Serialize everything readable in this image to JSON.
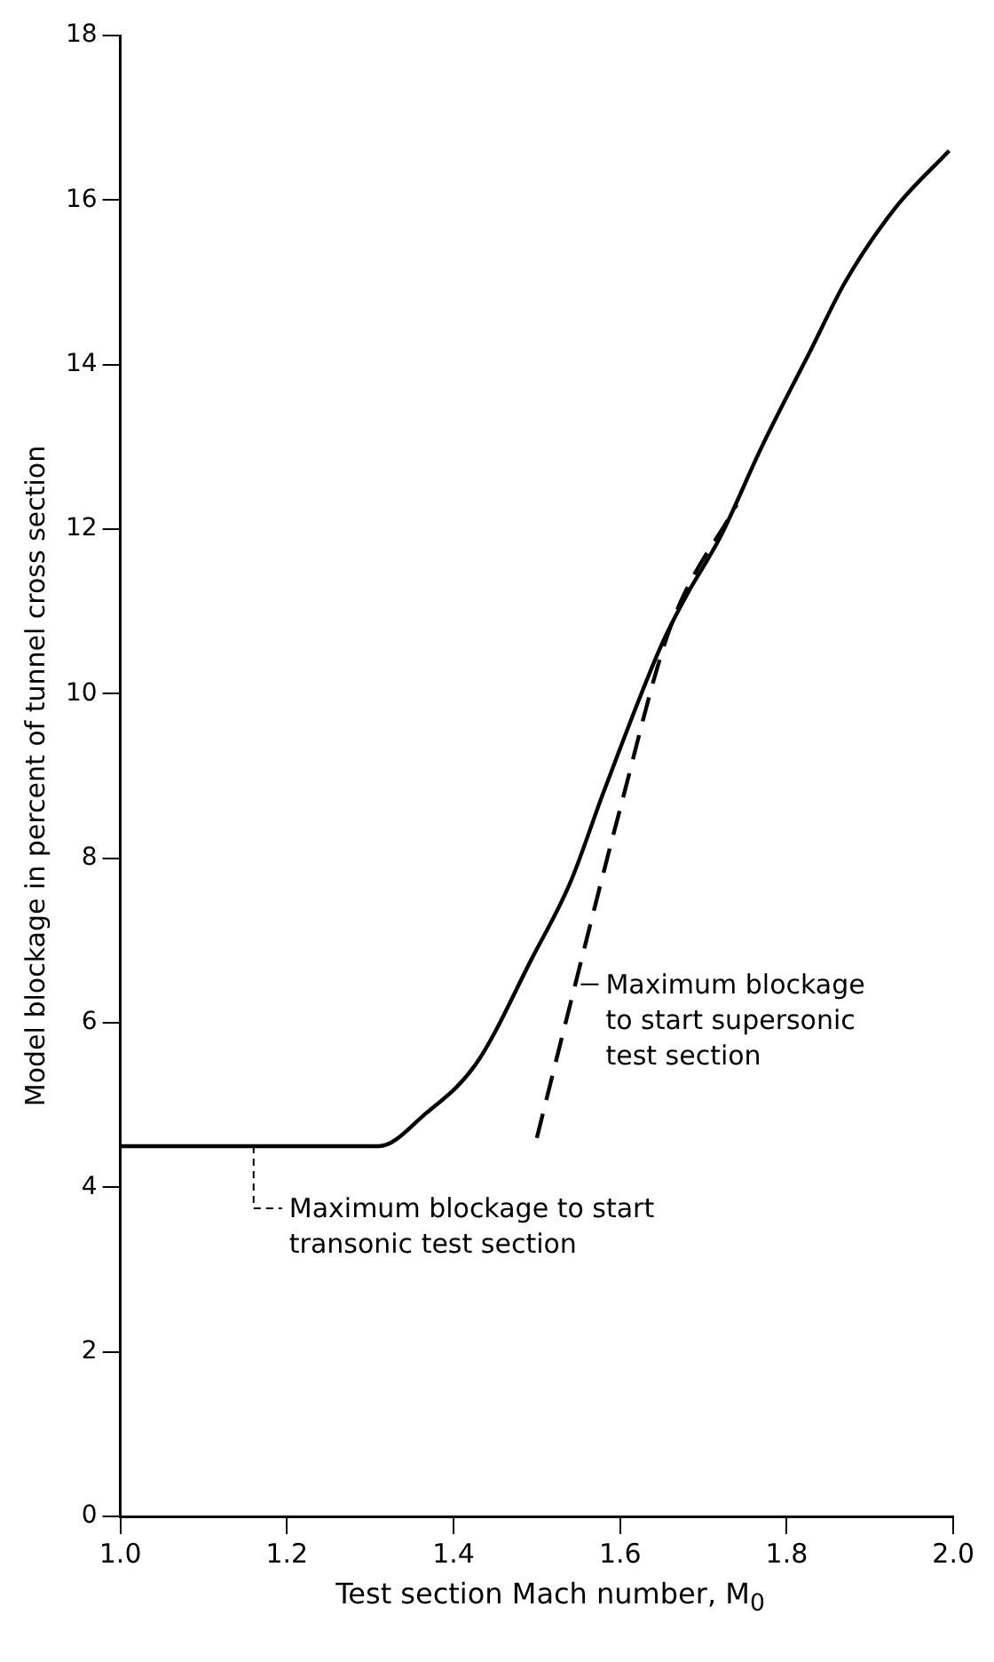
{
  "chart_data": {
    "type": "line",
    "xlabel": "Test section Mach number, M$_{0}$",
    "ylabel": "Model blockage in percent of tunnel cross section",
    "xlim": [
      1,
      2
    ],
    "ylim": [
      0,
      18
    ],
    "xticks": [
      {
        "value": 1,
        "label": "1.0"
      },
      {
        "value": 1.2,
        "label": "1.2"
      },
      {
        "value": 1.4,
        "label": "1.4"
      },
      {
        "value": 1.6,
        "label": "1.6"
      },
      {
        "value": 1.8,
        "label": "1.8"
      },
      {
        "value": 2,
        "label": "2.0"
      }
    ],
    "yticks": [
      0,
      2,
      4,
      6,
      8,
      10,
      12,
      14,
      16,
      18
    ],
    "grid": false,
    "legend": false,
    "marker": "none",
    "series": [
      {
        "color": "#000000",
        "line_style": "solid",
        "x": [
          1.0,
          1.1,
          1.2,
          1.31,
          1.367,
          1.427,
          1.495,
          1.54,
          1.58,
          1.65,
          1.68,
          1.72,
          1.77,
          1.83,
          1.87,
          1.93,
          1.995
        ],
        "values": [
          4.5,
          4.5,
          4.5,
          4.5,
          4.9,
          5.5,
          6.8,
          7.7,
          8.8,
          10.6,
          11.2,
          11.9,
          13,
          14.2,
          15,
          15.9,
          16.6
        ]
      },
      {
        "color": "#000000",
        "line_style": "dashed",
        "x": [
          1.5,
          1.537,
          1.6,
          1.66,
          1.74
        ],
        "values": [
          4.6,
          6.1,
          8.6,
          10.8,
          12.3
        ]
      }
    ],
    "annotations": [
      {
        "text": "Maximum blockage to start transonic test section",
        "x": 1.16,
        "y": 4.5
      },
      {
        "text": "Maximum blockage to start supersonic test section",
        "x": 1.54,
        "y": 6.1
      }
    ]
  }
}
